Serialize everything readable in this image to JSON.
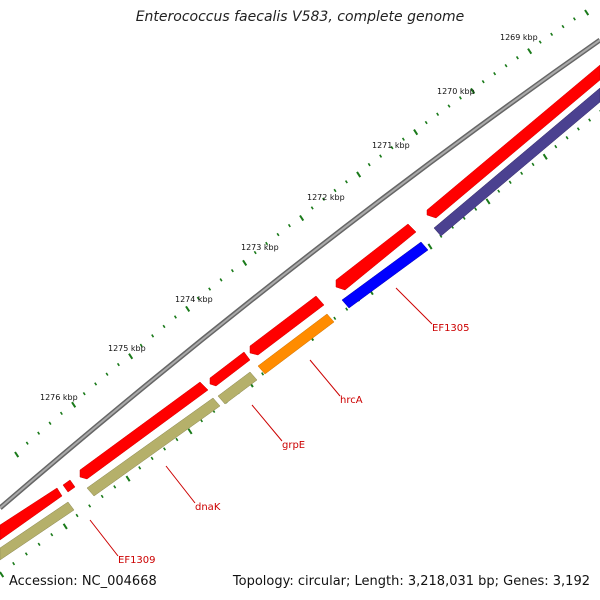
{
  "title": "Enterococcus faecalis V583, complete genome",
  "accession": "Accession: NC_004668",
  "topology": "Topology: circular; Length: 3,218,031 bp; Genes: 3,192",
  "ruler_labels": [
    {
      "text": "1269 kbp",
      "kbp": 1269
    },
    {
      "text": "1270 kbp",
      "kbp": 1270
    },
    {
      "text": "1271 kbp",
      "kbp": 1271
    },
    {
      "text": "1272 kbp",
      "kbp": 1272
    },
    {
      "text": "1273 kbp",
      "kbp": 1273
    },
    {
      "text": "1274 kbp",
      "kbp": 1274
    },
    {
      "text": "1275 kbp",
      "kbp": 1275
    },
    {
      "text": "1276 kbp",
      "kbp": 1276
    }
  ],
  "gene_labels": [
    {
      "name": "EF1305",
      "color": "#cc0000"
    },
    {
      "name": "hrcA",
      "color": "#cc0000"
    },
    {
      "name": "grpE",
      "color": "#cc0000"
    },
    {
      "name": "dnaK",
      "color": "#cc0000"
    },
    {
      "name": "EF1309",
      "color": "#cc0000"
    }
  ],
  "colors": {
    "backbone": "#888888",
    "cds_forward": "#ff0000",
    "cog_navy": "#4b4190",
    "cog_blue": "#0000ff",
    "cog_orange": "#ff8c00",
    "cog_olive": "#b5b06a",
    "ruler_ticks": "#1a7a1a",
    "label_text": "#cc0000"
  }
}
